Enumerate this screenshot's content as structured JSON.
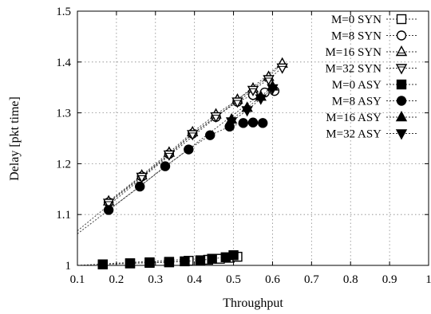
{
  "chart_data": {
    "type": "scatter",
    "title": "",
    "xlabel": "Throughput",
    "ylabel": "Delay [pkt time]",
    "xlim": [
      0.1,
      1.0
    ],
    "ylim": [
      1.0,
      1.5
    ],
    "xticks": [
      0.1,
      0.2,
      0.3,
      0.4,
      0.5,
      0.6,
      0.7,
      0.8,
      0.9,
      1.0
    ],
    "xtick_labels": [
      "0.1",
      "0.2",
      "0.3",
      "0.4",
      "0.5",
      "0.6",
      "0.7",
      "0.8",
      "0.9",
      "1"
    ],
    "yticks": [
      1.0,
      1.1,
      1.2,
      1.3,
      1.4,
      1.5
    ],
    "ytick_labels": [
      "1",
      "1.1",
      "1.2",
      "1.3",
      "1.4",
      "1.5"
    ],
    "grid": true,
    "grid_style": "dotted",
    "legend_position": "top-right",
    "series": [
      {
        "name": "M=0 SYN",
        "marker": "square-open",
        "line": "dotted",
        "x": [
          0.165,
          0.235,
          0.285,
          0.335,
          0.385,
          0.435,
          0.465,
          0.49,
          0.51
        ],
        "y": [
          1.002,
          1.004,
          1.006,
          1.007,
          1.009,
          1.011,
          1.013,
          1.015,
          1.017
        ]
      },
      {
        "name": "M=8 SYN",
        "marker": "circle-open",
        "line": "dotted",
        "x": [
          0.18,
          0.265,
          0.335,
          0.395,
          0.455,
          0.51,
          0.55,
          0.58,
          0.605
        ],
        "y": [
          1.124,
          1.175,
          1.219,
          1.259,
          1.292,
          1.322,
          1.335,
          1.34,
          1.343
        ]
      },
      {
        "name": "M=16 SYN",
        "marker": "triangle-up-open",
        "line": "dotted",
        "x": [
          0.18,
          0.265,
          0.335,
          0.395,
          0.455,
          0.51,
          0.55,
          0.59,
          0.625
        ],
        "y": [
          1.126,
          1.177,
          1.222,
          1.262,
          1.297,
          1.326,
          1.348,
          1.371,
          1.397
        ]
      },
      {
        "name": "M=32 SYN",
        "marker": "triangle-down-open",
        "line": "dotted",
        "x": [
          0.18,
          0.265,
          0.335,
          0.395,
          0.455,
          0.51,
          0.55,
          0.59,
          0.625
        ],
        "y": [
          1.123,
          1.174,
          1.218,
          1.258,
          1.293,
          1.322,
          1.345,
          1.366,
          1.389
        ]
      },
      {
        "name": "M=0 ASY",
        "marker": "square-filled",
        "line": "dotted",
        "x": [
          0.165,
          0.235,
          0.285,
          0.335,
          0.375,
          0.415,
          0.445,
          0.48,
          0.5
        ],
        "y": [
          1.002,
          1.004,
          1.005,
          1.006,
          1.008,
          1.01,
          1.013,
          1.016,
          1.02
        ]
      },
      {
        "name": "M=8 ASY",
        "marker": "circle-filled",
        "line": "dotted",
        "x": [
          0.18,
          0.26,
          0.325,
          0.385,
          0.44,
          0.49,
          0.525,
          0.55,
          0.575
        ],
        "y": [
          1.109,
          1.155,
          1.195,
          1.228,
          1.256,
          1.273,
          1.28,
          1.281,
          1.28
        ]
      },
      {
        "name": "M=16 ASY",
        "marker": "triangle-up-filled",
        "line": "dotted",
        "x": [
          0.495,
          0.535,
          0.57,
          0.6
        ],
        "y": [
          1.287,
          1.31,
          1.332,
          1.352
        ]
      },
      {
        "name": "M=32 ASY",
        "marker": "triangle-down-filled",
        "line": "dotted",
        "x": [
          0.495,
          0.535,
          0.57,
          0.6
        ],
        "y": [
          1.283,
          1.305,
          1.328,
          1.348
        ]
      }
    ],
    "fit_lines": [
      {
        "series": "M=0",
        "x": [
          0.1,
          0.52
        ],
        "y": [
          1.0,
          1.018
        ]
      },
      {
        "series": "SYN",
        "x": [
          0.1,
          0.625
        ],
        "y": [
          1.068,
          1.398
        ]
      },
      {
        "series": "ASY",
        "x": [
          0.1,
          0.6
        ],
        "y": [
          1.062,
          1.355
        ]
      }
    ]
  }
}
